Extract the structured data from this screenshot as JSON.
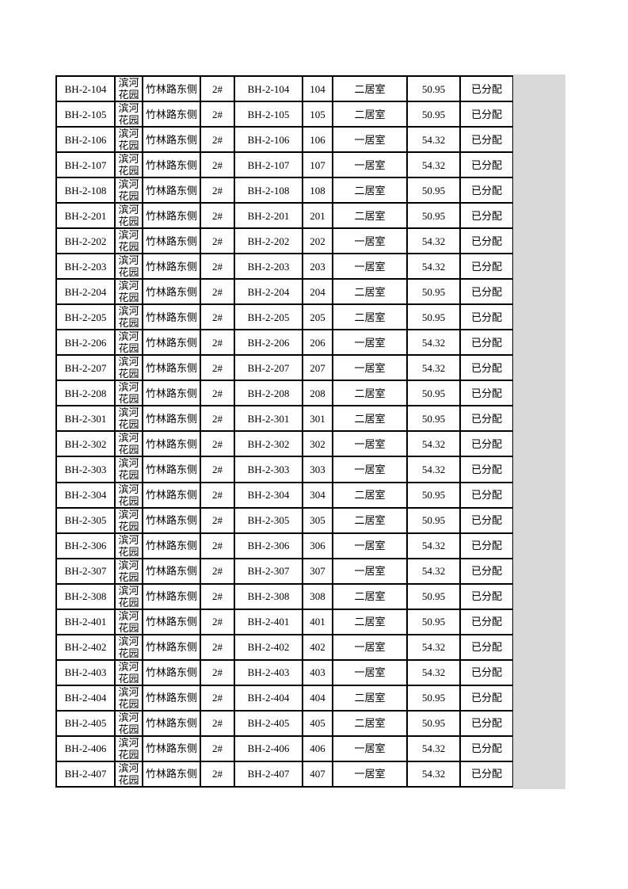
{
  "page": {
    "background_color": "#ffffff",
    "margin_shade_color": "#d9d9d9",
    "border_color": "#000000"
  },
  "columns": [
    "unit-code-cell",
    "estate-name-cell",
    "location-cell",
    "building-no-cell",
    "room-code-cell",
    "room-no-cell",
    "room-type-cell",
    "area-cell",
    "status-cell"
  ],
  "rows": [
    [
      "BH-2-104",
      "滨河花园",
      "竹林路东侧",
      "2#",
      "BH-2-104",
      "104",
      "二居室",
      "50.95",
      "已分配"
    ],
    [
      "BH-2-105",
      "滨河花园",
      "竹林路东侧",
      "2#",
      "BH-2-105",
      "105",
      "二居室",
      "50.95",
      "已分配"
    ],
    [
      "BH-2-106",
      "滨河花园",
      "竹林路东侧",
      "2#",
      "BH-2-106",
      "106",
      "一居室",
      "54.32",
      "已分配"
    ],
    [
      "BH-2-107",
      "滨河花园",
      "竹林路东侧",
      "2#",
      "BH-2-107",
      "107",
      "一居室",
      "54.32",
      "已分配"
    ],
    [
      "BH-2-108",
      "滨河花园",
      "竹林路东侧",
      "2#",
      "BH-2-108",
      "108",
      "二居室",
      "50.95",
      "已分配"
    ],
    [
      "BH-2-201",
      "滨河花园",
      "竹林路东侧",
      "2#",
      "BH-2-201",
      "201",
      "二居室",
      "50.95",
      "已分配"
    ],
    [
      "BH-2-202",
      "滨河花园",
      "竹林路东侧",
      "2#",
      "BH-2-202",
      "202",
      "一居室",
      "54.32",
      "已分配"
    ],
    [
      "BH-2-203",
      "滨河花园",
      "竹林路东侧",
      "2#",
      "BH-2-203",
      "203",
      "一居室",
      "54.32",
      "已分配"
    ],
    [
      "BH-2-204",
      "滨河花园",
      "竹林路东侧",
      "2#",
      "BH-2-204",
      "204",
      "二居室",
      "50.95",
      "已分配"
    ],
    [
      "BH-2-205",
      "滨河花园",
      "竹林路东侧",
      "2#",
      "BH-2-205",
      "205",
      "二居室",
      "50.95",
      "已分配"
    ],
    [
      "BH-2-206",
      "滨河花园",
      "竹林路东侧",
      "2#",
      "BH-2-206",
      "206",
      "一居室",
      "54.32",
      "已分配"
    ],
    [
      "BH-2-207",
      "滨河花园",
      "竹林路东侧",
      "2#",
      "BH-2-207",
      "207",
      "一居室",
      "54.32",
      "已分配"
    ],
    [
      "BH-2-208",
      "滨河花园",
      "竹林路东侧",
      "2#",
      "BH-2-208",
      "208",
      "二居室",
      "50.95",
      "已分配"
    ],
    [
      "BH-2-301",
      "滨河花园",
      "竹林路东侧",
      "2#",
      "BH-2-301",
      "301",
      "二居室",
      "50.95",
      "已分配"
    ],
    [
      "BH-2-302",
      "滨河花园",
      "竹林路东侧",
      "2#",
      "BH-2-302",
      "302",
      "一居室",
      "54.32",
      "已分配"
    ],
    [
      "BH-2-303",
      "滨河花园",
      "竹林路东侧",
      "2#",
      "BH-2-303",
      "303",
      "一居室",
      "54.32",
      "已分配"
    ],
    [
      "BH-2-304",
      "滨河花园",
      "竹林路东侧",
      "2#",
      "BH-2-304",
      "304",
      "二居室",
      "50.95",
      "已分配"
    ],
    [
      "BH-2-305",
      "滨河花园",
      "竹林路东侧",
      "2#",
      "BH-2-305",
      "305",
      "二居室",
      "50.95",
      "已分配"
    ],
    [
      "BH-2-306",
      "滨河花园",
      "竹林路东侧",
      "2#",
      "BH-2-306",
      "306",
      "一居室",
      "54.32",
      "已分配"
    ],
    [
      "BH-2-307",
      "滨河花园",
      "竹林路东侧",
      "2#",
      "BH-2-307",
      "307",
      "一居室",
      "54.32",
      "已分配"
    ],
    [
      "BH-2-308",
      "滨河花园",
      "竹林路东侧",
      "2#",
      "BH-2-308",
      "308",
      "二居室",
      "50.95",
      "已分配"
    ],
    [
      "BH-2-401",
      "滨河花园",
      "竹林路东侧",
      "2#",
      "BH-2-401",
      "401",
      "二居室",
      "50.95",
      "已分配"
    ],
    [
      "BH-2-402",
      "滨河花园",
      "竹林路东侧",
      "2#",
      "BH-2-402",
      "402",
      "一居室",
      "54.32",
      "已分配"
    ],
    [
      "BH-2-403",
      "滨河花园",
      "竹林路东侧",
      "2#",
      "BH-2-403",
      "403",
      "一居室",
      "54.32",
      "已分配"
    ],
    [
      "BH-2-404",
      "滨河花园",
      "竹林路东侧",
      "2#",
      "BH-2-404",
      "404",
      "二居室",
      "50.95",
      "已分配"
    ],
    [
      "BH-2-405",
      "滨河花园",
      "竹林路东侧",
      "2#",
      "BH-2-405",
      "405",
      "二居室",
      "50.95",
      "已分配"
    ],
    [
      "BH-2-406",
      "滨河花园",
      "竹林路东侧",
      "2#",
      "BH-2-406",
      "406",
      "一居室",
      "54.32",
      "已分配"
    ],
    [
      "BH-2-407",
      "滨河花园",
      "竹林路东侧",
      "2#",
      "BH-2-407",
      "407",
      "一居室",
      "54.32",
      "已分配"
    ]
  ]
}
